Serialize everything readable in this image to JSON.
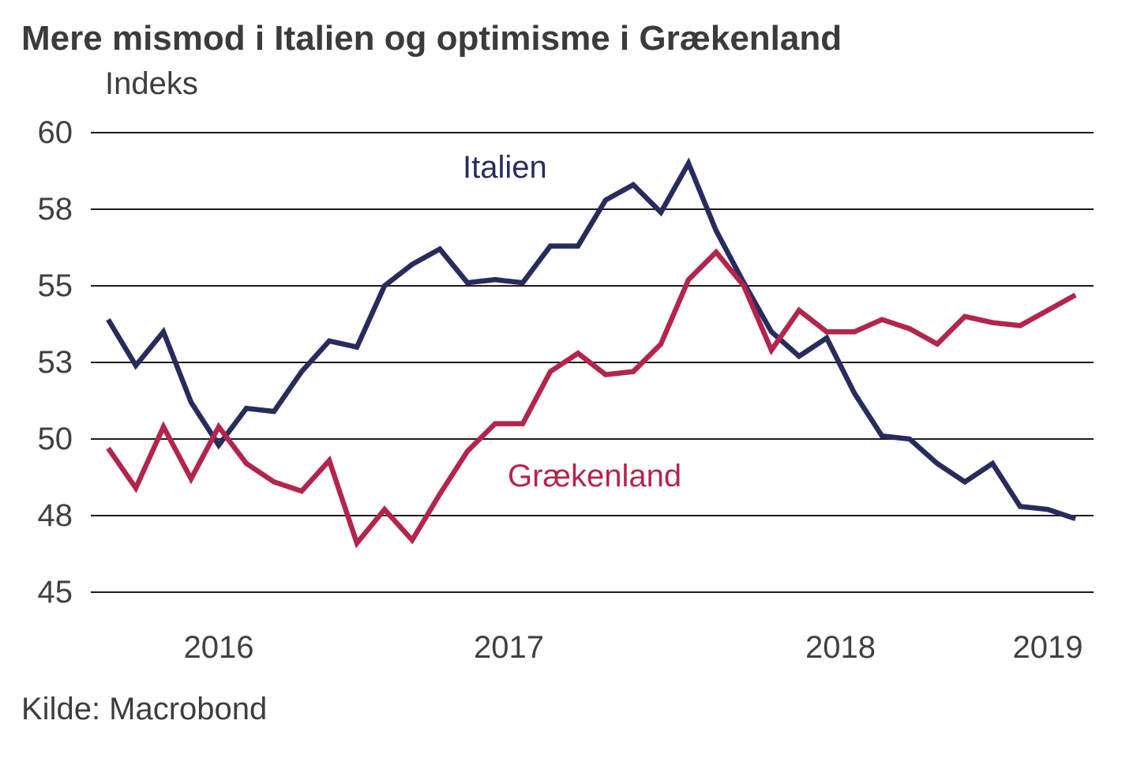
{
  "title": "Mere mismod i Italien og optimisme i Grækenland",
  "y_axis_unit_label": "Indeks",
  "source": "Kilde: Macrobond",
  "colors": {
    "italy": "#282c5c",
    "greece": "#b2254c",
    "grid": "#1c1c1c",
    "text": "#3d3d3d"
  },
  "chart_data": {
    "type": "line",
    "title": "Mere mismod i Italien og optimisme i Grækenland",
    "ylabel": "Indeks",
    "ylim": [
      45,
      60
    ],
    "grid": "horizontal-only",
    "legend_position": "inline-annotations",
    "y_ticks": [
      {
        "value": 60,
        "label": "60"
      },
      {
        "value": 57.5,
        "label": "58"
      },
      {
        "value": 55,
        "label": "55"
      },
      {
        "value": 52.5,
        "label": "53"
      },
      {
        "value": 50,
        "label": "50"
      },
      {
        "value": 47.5,
        "label": "48"
      },
      {
        "value": 45,
        "label": "45"
      }
    ],
    "x_year_labels": [
      "2016",
      "2017",
      "2018",
      "2019"
    ],
    "x": [
      "2016-04",
      "2016-05",
      "2016-06",
      "2016-07",
      "2016-08",
      "2016-09",
      "2016-10",
      "2016-11",
      "2016-12",
      "2017-01",
      "2017-02",
      "2017-03",
      "2017-04",
      "2017-05",
      "2017-06",
      "2017-07",
      "2017-08",
      "2017-09",
      "2017-10",
      "2017-11",
      "2017-12",
      "2018-01",
      "2018-02",
      "2018-03",
      "2018-04",
      "2018-05",
      "2018-06",
      "2018-07",
      "2018-08",
      "2018-09",
      "2018-10",
      "2018-11",
      "2018-12",
      "2019-01",
      "2019-02",
      "2019-03"
    ],
    "series": [
      {
        "name": "Italien",
        "color_key": "italy",
        "values": [
          53.9,
          52.4,
          53.5,
          51.2,
          49.8,
          51.0,
          50.9,
          52.2,
          53.2,
          53.0,
          55.0,
          55.7,
          56.2,
          55.1,
          55.2,
          55.1,
          56.3,
          56.3,
          57.8,
          58.3,
          57.4,
          59.0,
          56.8,
          55.1,
          53.5,
          52.7,
          53.3,
          51.5,
          50.1,
          50.0,
          49.2,
          48.6,
          49.2,
          47.8,
          47.7,
          47.4
        ]
      },
      {
        "name": "Grækenland",
        "color_key": "greece",
        "values": [
          49.7,
          48.4,
          50.4,
          48.7,
          50.4,
          49.2,
          48.6,
          48.3,
          49.3,
          46.6,
          47.7,
          46.7,
          48.2,
          49.6,
          50.5,
          50.5,
          52.2,
          52.8,
          52.1,
          52.2,
          53.1,
          55.2,
          56.1,
          55.0,
          52.9,
          54.2,
          53.5,
          53.5,
          53.9,
          53.6,
          53.1,
          54.0,
          53.8,
          53.7,
          54.2,
          54.7
        ]
      }
    ]
  }
}
